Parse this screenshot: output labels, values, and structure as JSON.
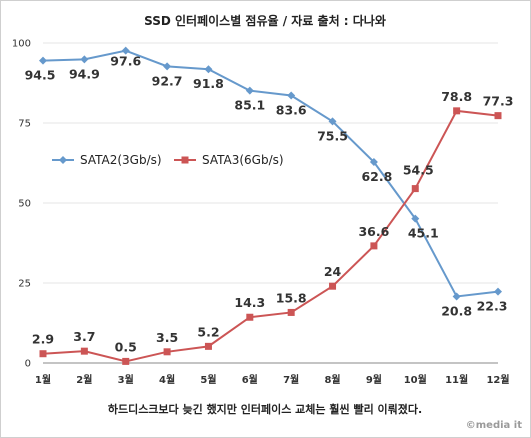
{
  "chart_data": {
    "type": "line",
    "title": "SSD 인터페이스별 점유율 / 자료 출처 : 다나와",
    "caption": "하드디스크보다 늦긴 했지만 인터페이스 교체는 훨씬 빨리 이뤄졌다.",
    "watermark": "©media it",
    "categories": [
      "1월",
      "2월",
      "3월",
      "4월",
      "5월",
      "6월",
      "7월",
      "8월",
      "9월",
      "10월",
      "11월",
      "12월"
    ],
    "ylim": [
      0,
      100
    ],
    "yticks": [
      0,
      25,
      50,
      75,
      100
    ],
    "grid": true,
    "legend_position": "middle-left",
    "series": [
      {
        "name": "SATA2(3Gb/s)",
        "color": "#6699cc",
        "marker": "diamond",
        "values": [
          94.5,
          94.9,
          97.6,
          92.7,
          91.8,
          85.1,
          83.6,
          75.5,
          62.8,
          45.1,
          20.8,
          22.3
        ],
        "labels": [
          "94.5",
          "94.9",
          "97.6",
          "92.7",
          "91.8",
          "85.1",
          "83.6",
          "75.5",
          "62.8",
          "45.1",
          "20.8",
          "22.3"
        ]
      },
      {
        "name": "SATA3(6Gb/s)",
        "color": "#cc5555",
        "marker": "square",
        "values": [
          2.9,
          3.7,
          0.5,
          3.5,
          5.2,
          14.3,
          15.8,
          24,
          36.6,
          54.5,
          78.8,
          77.3
        ],
        "labels": [
          "2.9",
          "3.7",
          "0.5",
          "3.5",
          "5.2",
          "14.3",
          "15.8",
          "24",
          "36.6",
          "54.5",
          "78.8",
          "77.3"
        ]
      }
    ]
  }
}
